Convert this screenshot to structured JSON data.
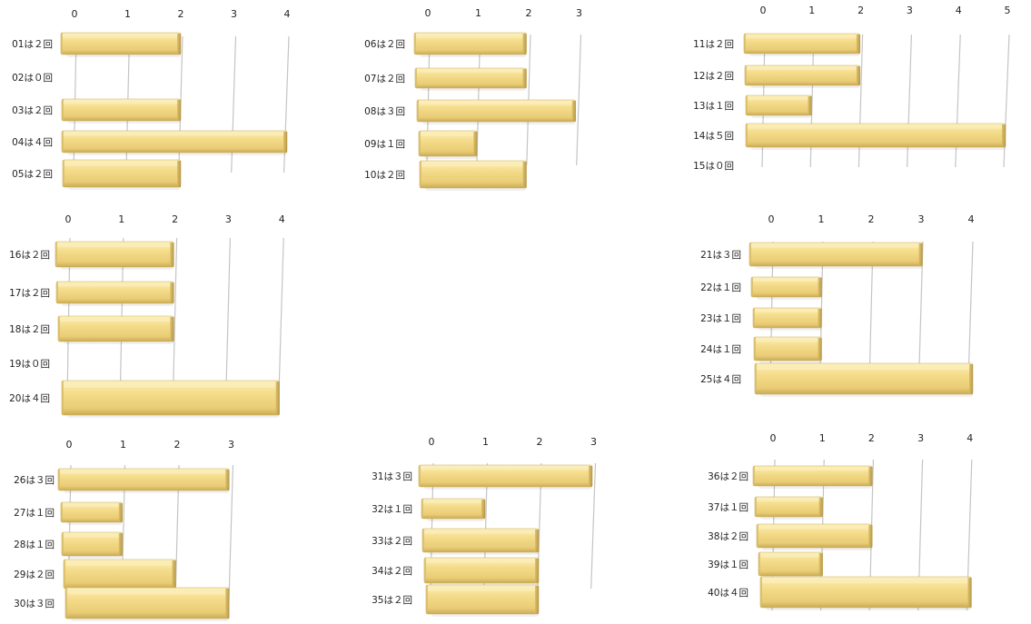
{
  "chart_data": [
    {
      "type": "bar",
      "categories": [
        "01は２回",
        "02は０回",
        "03は２回",
        "04は４回",
        "05は２回"
      ],
      "values": [
        2,
        0,
        2,
        4,
        2
      ],
      "ticks": [
        0,
        1,
        2,
        3,
        4
      ],
      "xlim": [
        0,
        4
      ]
    },
    {
      "type": "bar",
      "categories": [
        "06は２回",
        "07は２回",
        "08は３回",
        "09は１回",
        "10は２回"
      ],
      "values": [
        2,
        2,
        3,
        1,
        2
      ],
      "ticks": [
        0,
        1,
        2,
        3
      ],
      "xlim": [
        0,
        3
      ]
    },
    {
      "type": "bar",
      "categories": [
        "11は２回",
        "12は２回",
        "13は１回",
        "14は５回",
        "15は０回"
      ],
      "values": [
        2,
        2,
        1,
        5,
        0
      ],
      "ticks": [
        0,
        1,
        2,
        3,
        4,
        5
      ],
      "xlim": [
        0,
        5
      ]
    },
    {
      "type": "bar",
      "categories": [
        "16は２回",
        "17は２回",
        "18は２回",
        "19は０回",
        "20は４回"
      ],
      "values": [
        2,
        2,
        2,
        0,
        4
      ],
      "ticks": [
        0,
        1,
        2,
        3,
        4
      ],
      "xlim": [
        0,
        4
      ]
    },
    {
      "type": "bar",
      "categories": [
        "21は３回",
        "22は１回",
        "23は１回",
        "24は１回",
        "25は４回"
      ],
      "values": [
        3,
        1,
        1,
        1,
        4
      ],
      "ticks": [
        0,
        1,
        2,
        3,
        4
      ],
      "xlim": [
        0,
        4
      ]
    },
    {
      "type": "bar",
      "categories": [
        "26は３回",
        "27は１回",
        "28は１回",
        "29は２回",
        "30は３回"
      ],
      "values": [
        3,
        1,
        1,
        2,
        3
      ],
      "ticks": [
        0,
        1,
        2,
        3
      ],
      "xlim": [
        0,
        3
      ]
    },
    {
      "type": "bar",
      "categories": [
        "31は３回",
        "32は１回",
        "33は２回",
        "34は２回",
        "35は２回"
      ],
      "values": [
        3,
        1,
        2,
        2,
        2
      ],
      "ticks": [
        0,
        1,
        2,
        3
      ],
      "xlim": [
        0,
        3
      ]
    },
    {
      "type": "bar",
      "categories": [
        "36は２回",
        "37は１回",
        "38は２回",
        "39は１回",
        "40は４回"
      ],
      "values": [
        2,
        1,
        2,
        1,
        4
      ],
      "ticks": [
        0,
        1,
        2,
        3,
        4
      ],
      "xlim": [
        0,
        4
      ]
    }
  ],
  "colors": {
    "bar_face": "#f5dd8c",
    "bar_dark": "#b89a45",
    "bar_top": "#fbeeb8",
    "grid": "#c4c4c4",
    "text": "#222222"
  }
}
